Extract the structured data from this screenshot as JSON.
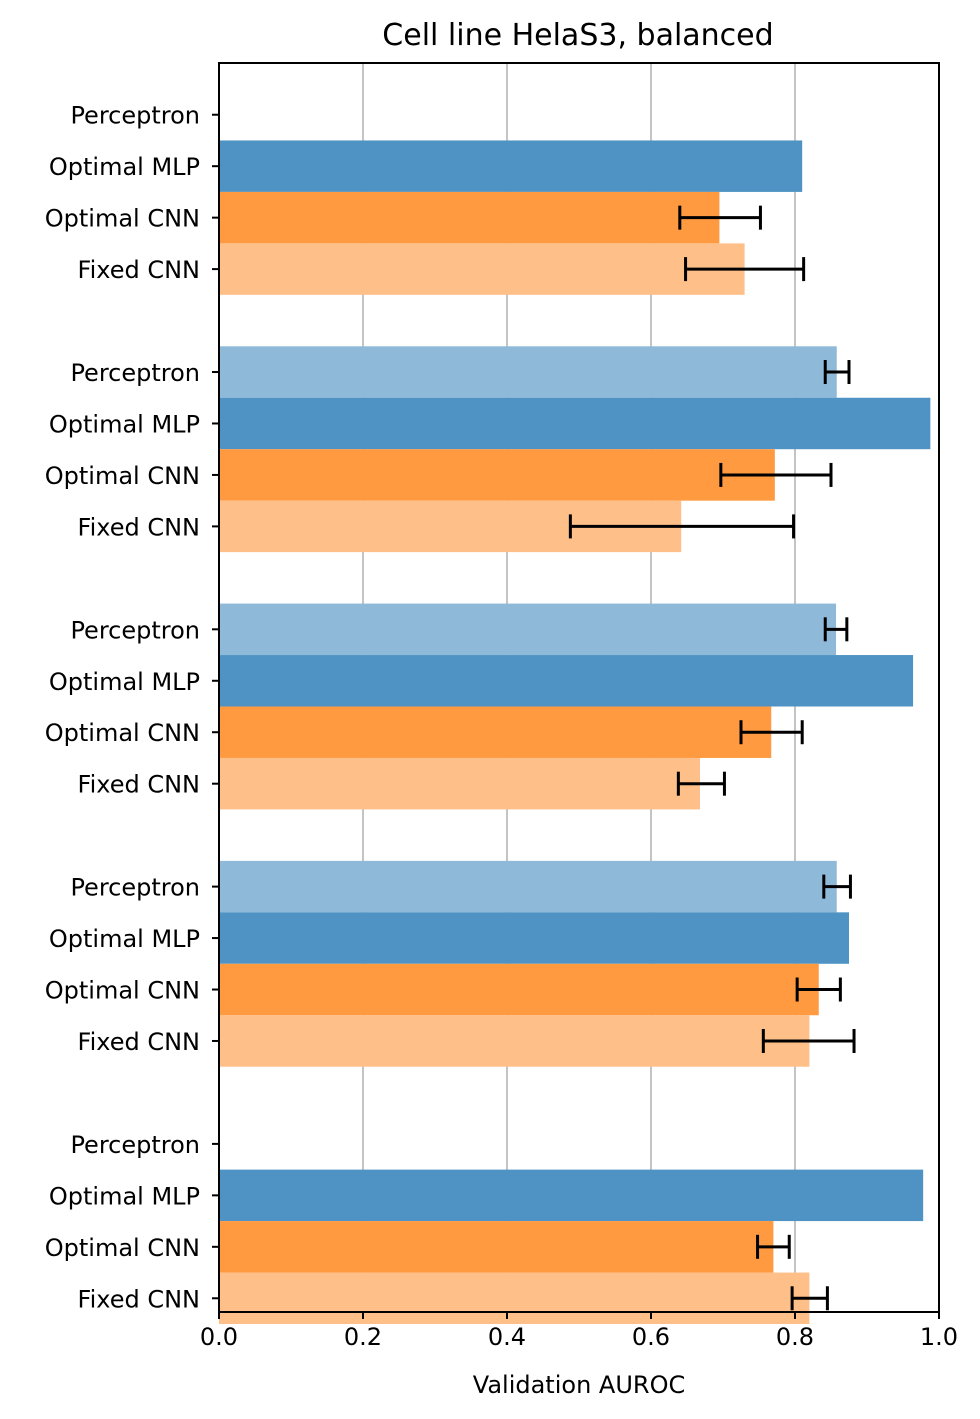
{
  "chart_data": {
    "type": "bar",
    "orientation": "horizontal",
    "title": "Cell line HelaS3, balanced",
    "xlabel": "Validation AUROC",
    "ylabel": "",
    "xlim": [
      0.0,
      1.0
    ],
    "xticks": [
      "0.0",
      "0.2",
      "0.4",
      "0.6",
      "0.8",
      "1.0"
    ],
    "grid": "x",
    "models": [
      {
        "name": "Perceptron",
        "color": "#8fb9d9"
      },
      {
        "name": "Optimal MLP",
        "color": "#4e93c3"
      },
      {
        "name": "Optimal CNN",
        "color": "#ff9a40"
      },
      {
        "name": "Fixed CNN",
        "color": "#ffbf88"
      }
    ],
    "groups": [
      {
        "bars": [
          {
            "model": "Perceptron",
            "value": null,
            "error": null
          },
          {
            "model": "Optimal MLP",
            "value": 0.81,
            "error": null
          },
          {
            "model": "Optimal CNN",
            "value": 0.695,
            "error": [
              0.64,
              0.752
            ]
          },
          {
            "model": "Fixed CNN",
            "value": 0.73,
            "error": [
              0.648,
              0.812
            ]
          }
        ]
      },
      {
        "bars": [
          {
            "model": "Perceptron",
            "value": 0.858,
            "error": [
              0.842,
              0.875
            ]
          },
          {
            "model": "Optimal MLP",
            "value": 0.988,
            "error": null
          },
          {
            "model": "Optimal CNN",
            "value": 0.772,
            "error": [
              0.697,
              0.85
            ]
          },
          {
            "model": "Fixed CNN",
            "value": 0.642,
            "error": [
              0.488,
              0.798
            ]
          }
        ]
      },
      {
        "bars": [
          {
            "model": "Perceptron",
            "value": 0.857,
            "error": [
              0.842,
              0.872
            ]
          },
          {
            "model": "Optimal MLP",
            "value": 0.964,
            "error": null
          },
          {
            "model": "Optimal CNN",
            "value": 0.767,
            "error": [
              0.725,
              0.81
            ]
          },
          {
            "model": "Fixed CNN",
            "value": 0.668,
            "error": [
              0.638,
              0.702
            ]
          }
        ]
      },
      {
        "bars": [
          {
            "model": "Perceptron",
            "value": 0.858,
            "error": [
              0.84,
              0.877
            ]
          },
          {
            "model": "Optimal MLP",
            "value": 0.875,
            "error": null
          },
          {
            "model": "Optimal CNN",
            "value": 0.833,
            "error": [
              0.803,
              0.863
            ]
          },
          {
            "model": "Fixed CNN",
            "value": 0.82,
            "error": [
              0.756,
              0.882
            ]
          }
        ]
      },
      {
        "bars": [
          {
            "model": "Perceptron",
            "value": null,
            "error": null
          },
          {
            "model": "Optimal MLP",
            "value": 0.978,
            "error": null
          },
          {
            "model": "Optimal CNN",
            "value": 0.77,
            "error": [
              0.748,
              0.792
            ]
          },
          {
            "model": "Fixed CNN",
            "value": 0.82,
            "error": [
              0.796,
              0.845
            ]
          }
        ]
      }
    ]
  }
}
